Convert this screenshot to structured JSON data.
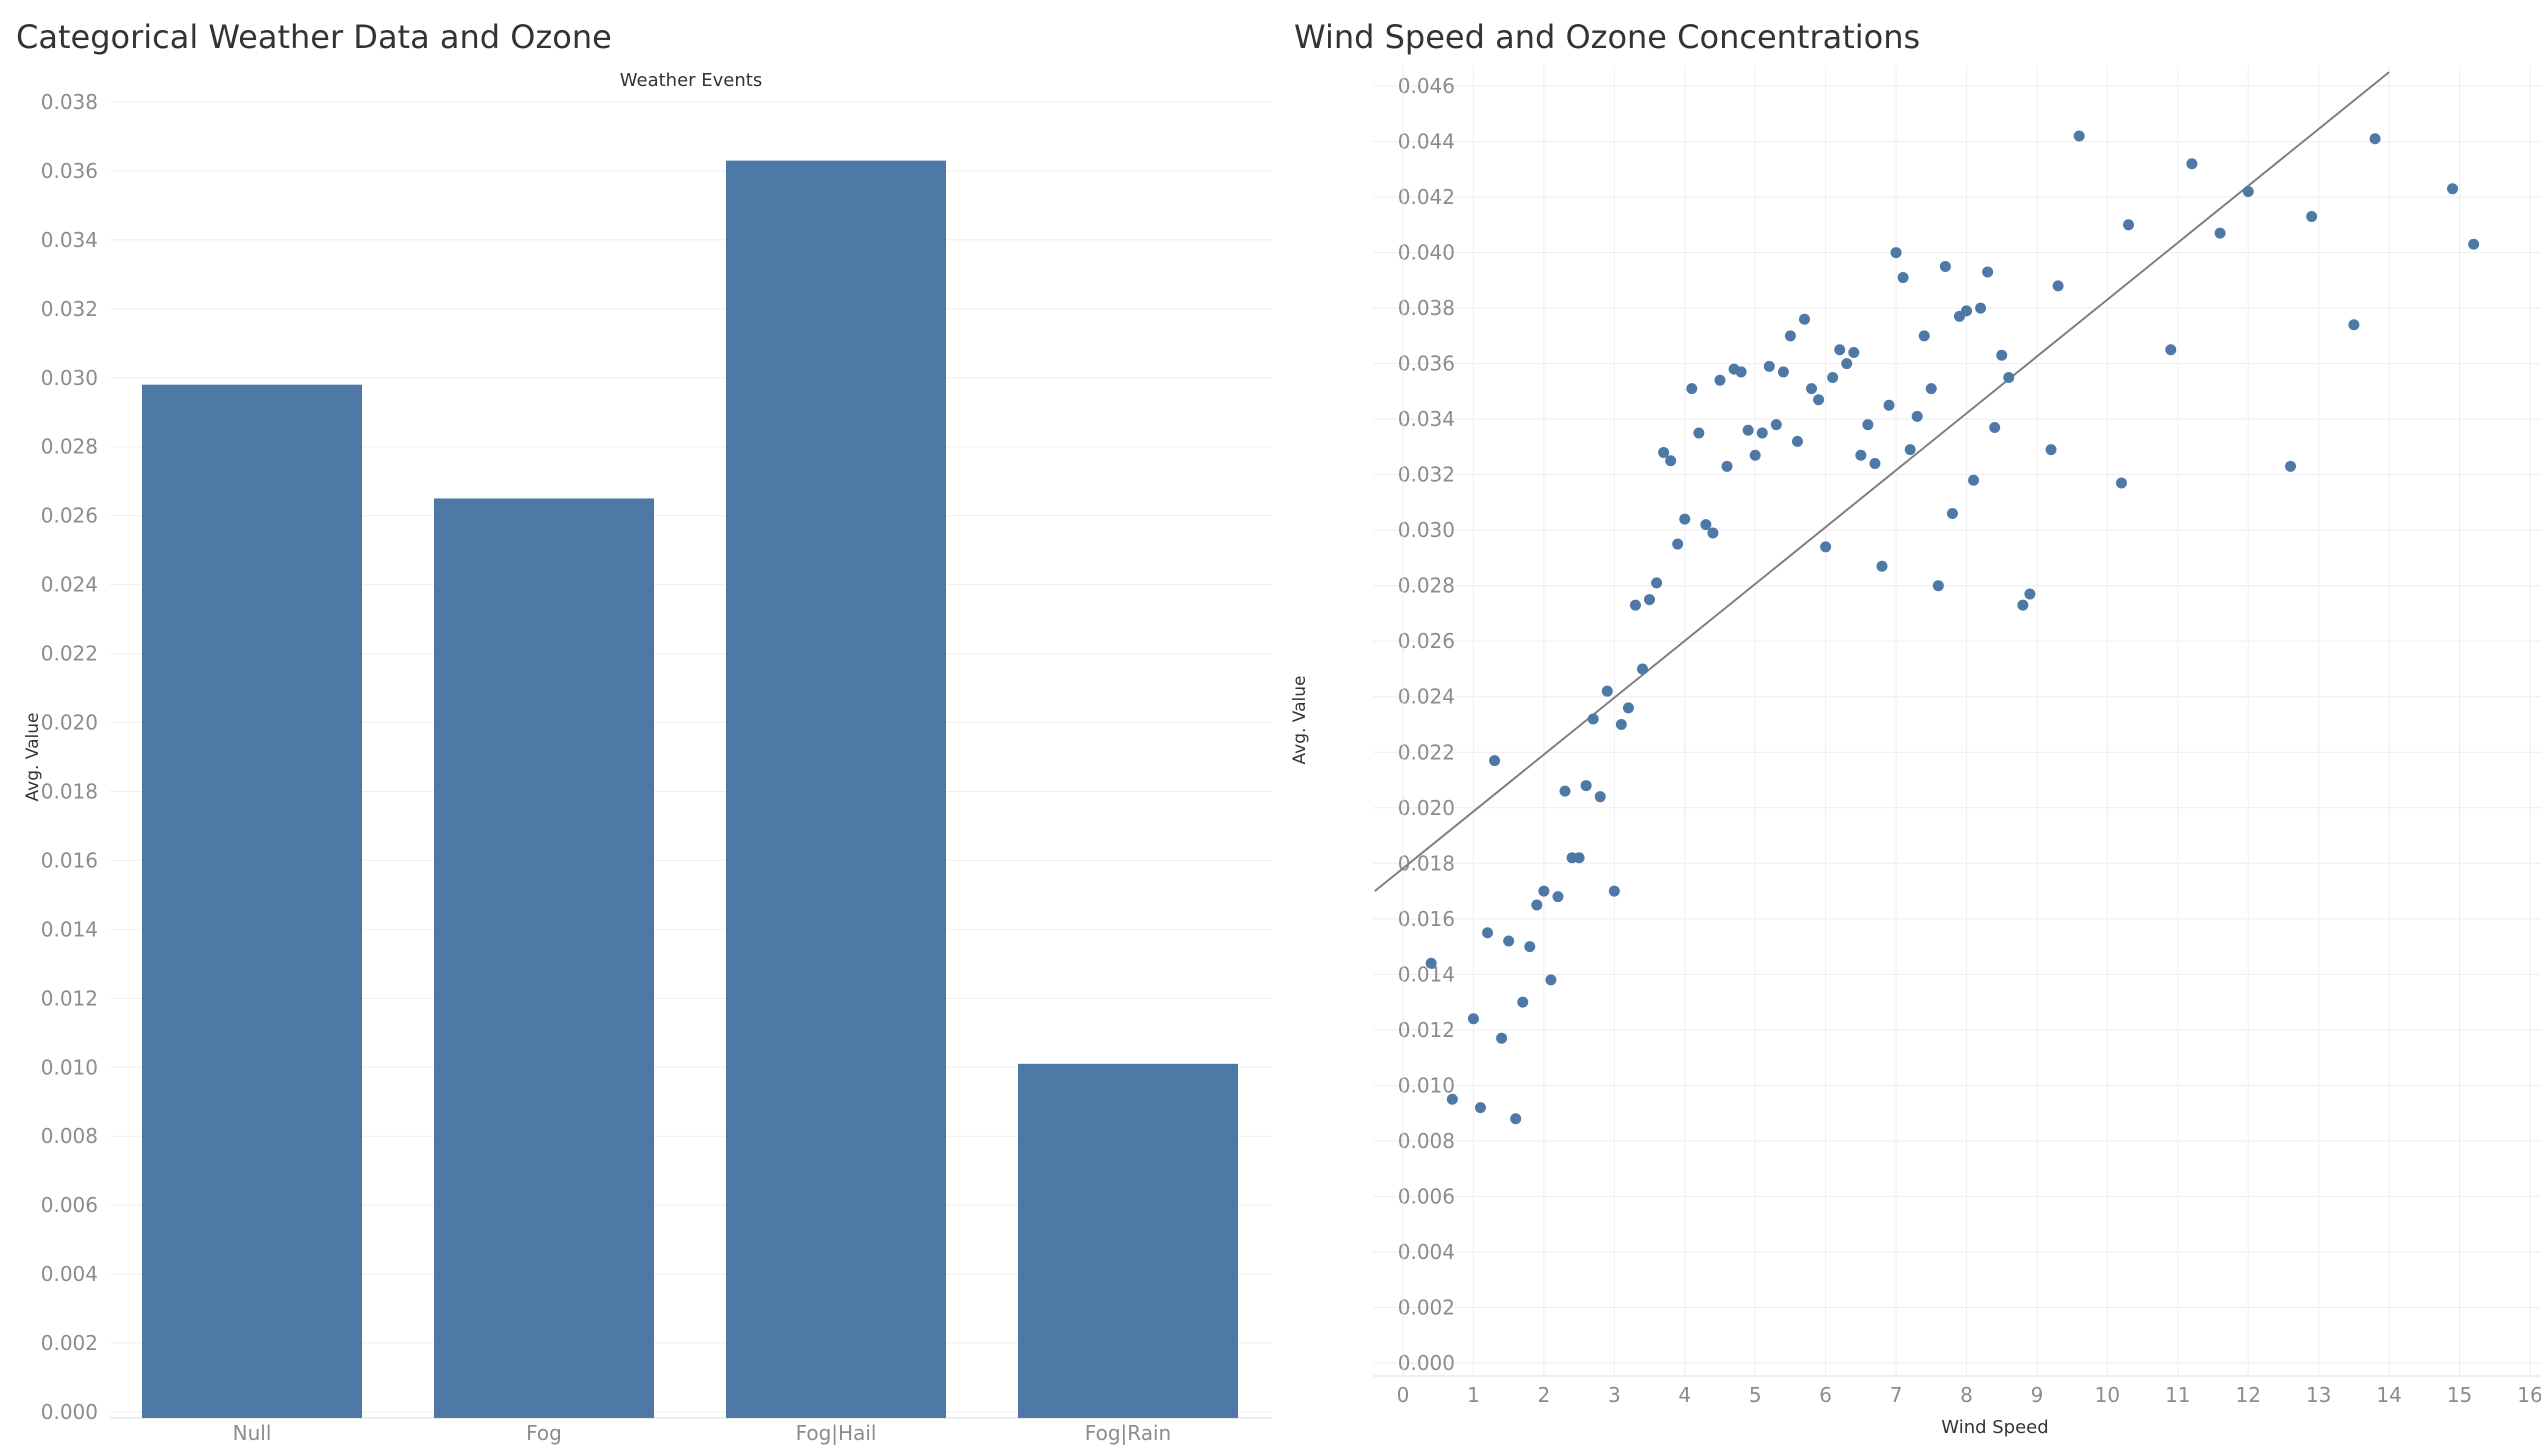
{
  "colors": {
    "bar": "#4e79a7",
    "point": "#4e79a7",
    "trend": "#7f7f7f",
    "grid": "#eeeeee",
    "axis_text": "#8c8c8c",
    "title_text": "#333333"
  },
  "chart_data": [
    {
      "type": "bar",
      "title": "Categorical Weather Data and Ozone",
      "column_header": "Weather Events",
      "xlabel": "",
      "ylabel": "Avg. Value",
      "categories": [
        "Null",
        "Fog",
        "Fog|Hail",
        "Fog|Rain"
      ],
      "values": [
        0.0298,
        0.0265,
        0.0363,
        0.0101
      ],
      "ylim": [
        0,
        0.038
      ],
      "yticks": [
        "0.000",
        "0.002",
        "0.004",
        "0.006",
        "0.008",
        "0.010",
        "0.012",
        "0.014",
        "0.016",
        "0.018",
        "0.020",
        "0.022",
        "0.024",
        "0.026",
        "0.028",
        "0.030",
        "0.032",
        "0.034",
        "0.036",
        "0.038"
      ],
      "grid": true
    },
    {
      "type": "scatter",
      "title": "Wind Speed and Ozone Concentrations",
      "xlabel": "Wind Speed",
      "ylabel": "Avg. Value",
      "xlim": [
        0,
        16
      ],
      "ylim": [
        0,
        0.046
      ],
      "xticks": [
        "0",
        "1",
        "2",
        "3",
        "4",
        "5",
        "6",
        "7",
        "8",
        "9",
        "10",
        "11",
        "12",
        "13",
        "14",
        "15",
        "16"
      ],
      "yticks": [
        "0.000",
        "0.002",
        "0.004",
        "0.006",
        "0.008",
        "0.010",
        "0.012",
        "0.014",
        "0.016",
        "0.018",
        "0.020",
        "0.022",
        "0.024",
        "0.026",
        "0.028",
        "0.030",
        "0.032",
        "0.034",
        "0.036",
        "0.038",
        "0.040",
        "0.042",
        "0.044",
        "0.046"
      ],
      "grid": true,
      "trend_line": {
        "x": [
          -0.4,
          14.0
        ],
        "y": [
          0.017,
          0.0465
        ]
      },
      "points": [
        [
          0.4,
          0.0144
        ],
        [
          0.7,
          0.0095
        ],
        [
          1.0,
          0.0124
        ],
        [
          1.1,
          0.0092
        ],
        [
          1.2,
          0.0155
        ],
        [
          1.3,
          0.0217
        ],
        [
          1.4,
          0.0117
        ],
        [
          1.5,
          0.0152
        ],
        [
          1.6,
          0.0088
        ],
        [
          1.7,
          0.013
        ],
        [
          1.8,
          0.015
        ],
        [
          1.9,
          0.0165
        ],
        [
          2.0,
          0.017
        ],
        [
          2.1,
          0.0138
        ],
        [
          2.2,
          0.0168
        ],
        [
          2.3,
          0.0206
        ],
        [
          2.4,
          0.0182
        ],
        [
          2.5,
          0.0182
        ],
        [
          2.6,
          0.0208
        ],
        [
          2.7,
          0.0232
        ],
        [
          2.8,
          0.0204
        ],
        [
          2.9,
          0.0242
        ],
        [
          3.0,
          0.017
        ],
        [
          3.1,
          0.023
        ],
        [
          3.2,
          0.0236
        ],
        [
          3.3,
          0.0273
        ],
        [
          3.4,
          0.025
        ],
        [
          3.5,
          0.0275
        ],
        [
          3.6,
          0.0281
        ],
        [
          3.7,
          0.0328
        ],
        [
          3.8,
          0.0325
        ],
        [
          3.9,
          0.0295
        ],
        [
          4.0,
          0.0304
        ],
        [
          4.1,
          0.0351
        ],
        [
          4.2,
          0.0335
        ],
        [
          4.3,
          0.0302
        ],
        [
          4.4,
          0.0299
        ],
        [
          4.5,
          0.0354
        ],
        [
          4.6,
          0.0323
        ],
        [
          4.7,
          0.0358
        ],
        [
          4.8,
          0.0357
        ],
        [
          4.9,
          0.0336
        ],
        [
          5.0,
          0.0327
        ],
        [
          5.1,
          0.0335
        ],
        [
          5.2,
          0.0359
        ],
        [
          5.3,
          0.0338
        ],
        [
          5.4,
          0.0357
        ],
        [
          5.5,
          0.037
        ],
        [
          5.6,
          0.0332
        ],
        [
          5.7,
          0.0376
        ],
        [
          5.8,
          0.0351
        ],
        [
          5.9,
          0.0347
        ],
        [
          6.0,
          0.0294
        ],
        [
          6.1,
          0.0355
        ],
        [
          6.2,
          0.0365
        ],
        [
          6.3,
          0.036
        ],
        [
          6.4,
          0.0364
        ],
        [
          6.5,
          0.0327
        ],
        [
          6.6,
          0.0338
        ],
        [
          6.7,
          0.0324
        ],
        [
          6.8,
          0.0287
        ],
        [
          6.9,
          0.0345
        ],
        [
          7.0,
          0.04
        ],
        [
          7.1,
          0.0391
        ],
        [
          7.2,
          0.0329
        ],
        [
          7.3,
          0.0341
        ],
        [
          7.4,
          0.037
        ],
        [
          7.5,
          0.0351
        ],
        [
          7.6,
          0.028
        ],
        [
          7.7,
          0.0395
        ],
        [
          7.8,
          0.0306
        ],
        [
          7.9,
          0.0377
        ],
        [
          8.0,
          0.0379
        ],
        [
          8.1,
          0.0318
        ],
        [
          8.2,
          0.038
        ],
        [
          8.3,
          0.0393
        ],
        [
          8.4,
          0.0337
        ],
        [
          8.5,
          0.0363
        ],
        [
          8.6,
          0.0355
        ],
        [
          8.8,
          0.0273
        ],
        [
          8.9,
          0.0277
        ],
        [
          9.2,
          0.0329
        ],
        [
          9.3,
          0.0388
        ],
        [
          9.6,
          0.0442
        ],
        [
          10.2,
          0.0317
        ],
        [
          10.3,
          0.041
        ],
        [
          10.9,
          0.0365
        ],
        [
          11.2,
          0.0432
        ],
        [
          11.6,
          0.0407
        ],
        [
          12.0,
          0.0422
        ],
        [
          12.6,
          0.0323
        ],
        [
          12.9,
          0.0413
        ],
        [
          13.5,
          0.0374
        ],
        [
          13.8,
          0.0441
        ],
        [
          14.9,
          0.0423
        ],
        [
          15.2,
          0.0403
        ]
      ]
    }
  ]
}
